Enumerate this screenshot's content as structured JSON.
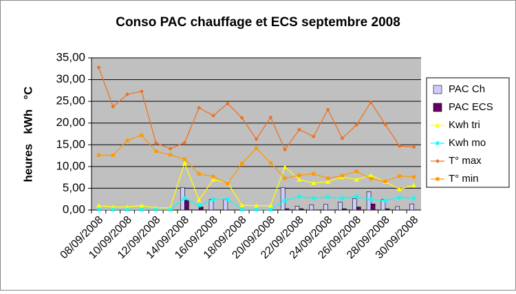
{
  "chart_data": {
    "type": "combo",
    "title": "Conso PAC chauffage et ECS septembre 2008",
    "y_label": "heures   kWh   °C",
    "categories": [
      "08/09/2008",
      null,
      "10/09/2008",
      null,
      "12/09/2008",
      null,
      "14/09/2008",
      null,
      "16/09/2008",
      null,
      "18/09/2008",
      null,
      "20/09/2008",
      null,
      "22/09/2008",
      null,
      "24/09/2008",
      null,
      "26/09/2008",
      null,
      "28/09/2008",
      null,
      "30/09/2008"
    ],
    "ylim": [
      0,
      35
    ],
    "yticks": [
      {
        "value": 0,
        "label": "0,00"
      },
      {
        "value": 5,
        "label": "5,00"
      },
      {
        "value": 10,
        "label": "10,00"
      },
      {
        "value": 15,
        "label": "15,00"
      },
      {
        "value": 20,
        "label": "20,00"
      },
      {
        "value": 25,
        "label": "25,00"
      },
      {
        "value": 30,
        "label": "30,00"
      },
      {
        "value": 35,
        "label": "35,00"
      }
    ],
    "grid": true,
    "legend": "right",
    "series": [
      {
        "name": "PAC Ch",
        "type": "bar",
        "color": "#ccccff",
        "values": [
          0,
          0,
          0,
          0,
          0,
          0,
          5.2,
          0,
          2.4,
          2.4,
          0,
          0,
          0,
          5.2,
          0.9,
          1.2,
          1.3,
          1.8,
          2.6,
          4.2,
          2.4,
          0.8,
          1.4
        ]
      },
      {
        "name": "PAC ECS",
        "type": "bar",
        "color": "#660066",
        "values": [
          0,
          0,
          0,
          0,
          0,
          0,
          2.3,
          0.7,
          0,
          0,
          0,
          0,
          0,
          0.3,
          0.3,
          0,
          0,
          0.3,
          0.7,
          1.4,
          0.3,
          0,
          0
        ]
      },
      {
        "name": "Kwh tri",
        "type": "line",
        "marker": "triangle",
        "color": "#ffff00",
        "values": [
          1.0,
          0.7,
          0.7,
          1.0,
          0.5,
          0.5,
          10.8,
          2.3,
          7.0,
          6.3,
          1.1,
          1.0,
          1.0,
          9.9,
          7.0,
          6.2,
          6.5,
          7.6,
          7.0,
          8.0,
          6.5,
          4.8,
          5.7
        ]
      },
      {
        "name": "Kwh mo",
        "type": "line",
        "marker": "star",
        "color": "#00ffff",
        "values": [
          0.1,
          0.1,
          0.1,
          0.1,
          0.1,
          0.1,
          2.7,
          1.0,
          2.5,
          2.5,
          0.1,
          0.1,
          0.1,
          2.2,
          3.1,
          2.7,
          3.0,
          2.7,
          3.1,
          2.4,
          2.2,
          2.9,
          2.7
        ]
      },
      {
        "name": "T° max",
        "type": "line",
        "marker": "diamond",
        "color": "#f07020",
        "values": [
          32.8,
          23.8,
          26.6,
          27.3,
          15.4,
          14.1,
          15.5,
          23.5,
          21.7,
          24.5,
          21.2,
          16.3,
          21.3,
          13.9,
          18.5,
          16.9,
          23.1,
          16.5,
          19.6,
          24.8,
          19.7,
          14.7,
          14.5
        ]
      },
      {
        "name": "T° min",
        "type": "line",
        "marker": "square",
        "color": "#ff9900",
        "values": [
          12.6,
          12.6,
          16.0,
          17.2,
          13.5,
          12.7,
          11.7,
          8.3,
          7.7,
          6.1,
          10.7,
          14.2,
          10.8,
          7.3,
          8.0,
          8.3,
          7.3,
          7.9,
          8.9,
          7.2,
          6.6,
          7.8,
          7.6
        ]
      }
    ]
  }
}
